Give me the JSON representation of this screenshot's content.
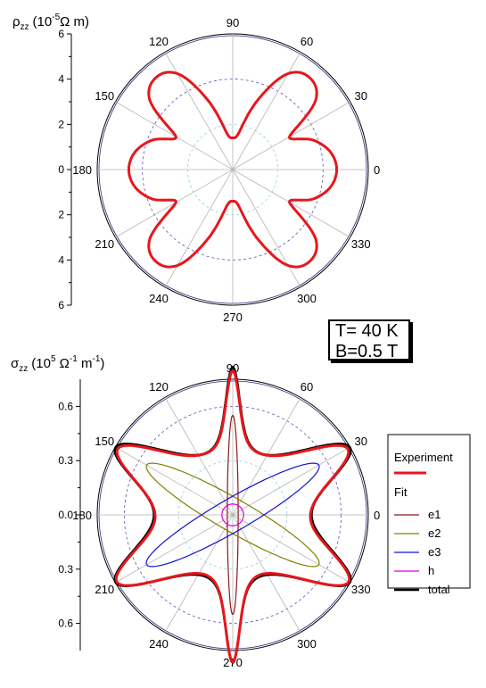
{
  "annotation": {
    "temperature": "T= 40 K",
    "field": "B=0.5 T"
  },
  "chart_data": [
    {
      "type": "polar",
      "ylabel": "ρzz (10-5Ω m)",
      "ylabel_parts": {
        "symbol": "ρ",
        "sub": "zz",
        "pre": "(10",
        "exp": "-5",
        "post": "Ω m)"
      },
      "radial_ticks": [
        "6",
        "4",
        "2",
        "0",
        "2",
        "4",
        "6"
      ],
      "rlim": [
        0,
        6
      ],
      "angle_labels": [
        "0",
        "30",
        "60",
        "90",
        "120",
        "150",
        "180",
        "210",
        "240",
        "270",
        "300",
        "330"
      ],
      "series": [
        {
          "name": "Experiment",
          "color": "#e8161b",
          "theta": [
            0,
            10,
            20,
            30,
            40,
            50,
            60,
            70,
            80,
            90,
            100,
            110,
            120,
            130,
            140,
            150,
            160,
            170,
            180,
            190,
            200,
            210,
            220,
            230,
            240,
            250,
            260,
            270,
            280,
            290,
            300,
            310,
            320,
            330,
            340,
            350,
            360
          ],
          "r": [
            4.6,
            4.4,
            3.8,
            2.9,
            4.8,
            5.3,
            4.9,
            3.3,
            1.7,
            1.4,
            1.7,
            3.3,
            4.9,
            5.3,
            4.8,
            2.9,
            3.8,
            4.4,
            4.6,
            4.4,
            3.8,
            2.9,
            4.8,
            5.3,
            4.9,
            3.3,
            1.7,
            1.4,
            1.7,
            3.3,
            4.9,
            5.3,
            4.8,
            2.9,
            3.8,
            4.4,
            4.6
          ]
        }
      ]
    },
    {
      "type": "polar",
      "ylabel": "σzz (105 Ω-1 m-1)",
      "ylabel_parts": {
        "symbol": "σ",
        "sub": "zz",
        "pre": "(10",
        "exp": "5",
        "mid": " Ω",
        "exp2": "-1",
        "mid2": " m",
        "exp3": "-1",
        "post": ")"
      },
      "radial_ticks": [
        "0.6",
        "0.3",
        "0.0",
        "0.3",
        "0.6"
      ],
      "rlim": [
        0,
        0.75
      ],
      "angle_labels": [
        "0",
        "30",
        "60",
        "90",
        "120",
        "150",
        "180",
        "210",
        "240",
        "270",
        "300",
        "330"
      ],
      "legend": {
        "experiment_header": "Experiment",
        "fit_header": "Fit",
        "items": [
          "e1",
          "e2",
          "e3",
          "h",
          "total"
        ]
      },
      "series": [
        {
          "name": "Experiment",
          "color": "#e8161b",
          "model": "sum of ellipses",
          "theta_peaks": [
            30,
            90,
            150,
            210,
            270,
            330
          ],
          "peak_r": [
            0.67,
            0.68,
            0.67,
            0.67,
            0.68,
            0.67
          ]
        },
        {
          "name": "e1",
          "color": "#8b1a1a",
          "model": "ellipse",
          "axis_angle": 90,
          "a": 0.55,
          "b": 0.03
        },
        {
          "name": "e2",
          "color": "#7f7f00",
          "model": "ellipse",
          "axis_angle": 150,
          "a": 0.55,
          "b": 0.09
        },
        {
          "name": "e3",
          "color": "#1010d8",
          "model": "ellipse",
          "axis_angle": 30,
          "a": 0.55,
          "b": 0.09
        },
        {
          "name": "h",
          "color": "#dd00dd",
          "model": "circle",
          "a": 0.06,
          "b": 0.06
        },
        {
          "name": "total",
          "color": "#000000",
          "model": "sum of ellipses"
        }
      ]
    }
  ]
}
